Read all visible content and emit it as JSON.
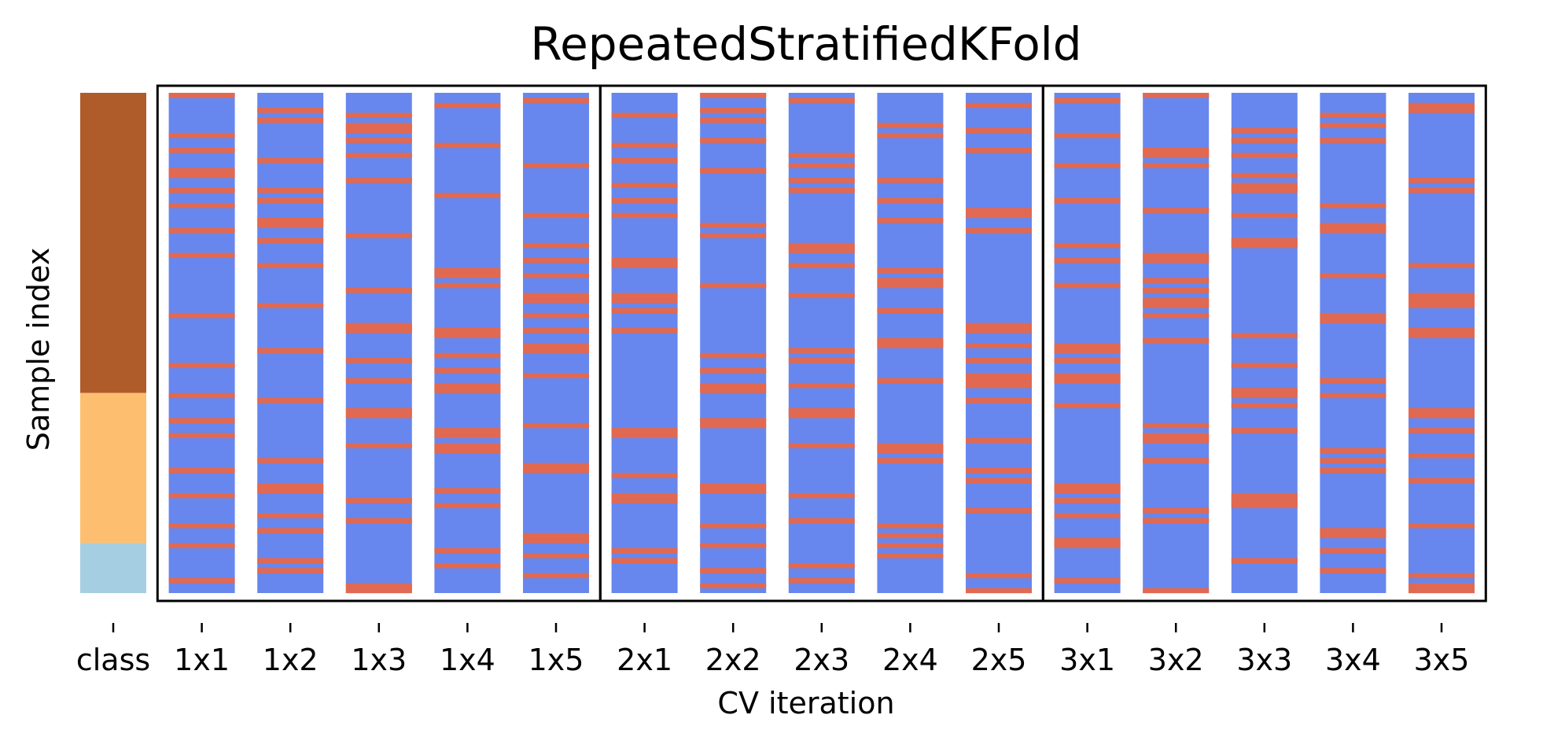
{
  "chart_data": {
    "type": "heatmap",
    "title": "RepeatedStratifiedKFold",
    "xlabel": "CV iteration",
    "ylabel": "Sample index",
    "categories": [
      "class",
      "1x1",
      "1x2",
      "1x3",
      "1x4",
      "1x5",
      "2x1",
      "2x2",
      "2x3",
      "2x4",
      "2x5",
      "3x1",
      "3x2",
      "3x3",
      "3x4",
      "3x5"
    ],
    "n_samples": 100,
    "colors": {
      "train": "#6787ee",
      "test": "#e16951",
      "class_0": "#b05c2a",
      "class_1": "#fdbf6f",
      "class_2": "#a6cee3"
    },
    "classes": [
      {
        "class": 0,
        "start": 0,
        "end": 60
      },
      {
        "class": 1,
        "start": 60,
        "end": 90
      },
      {
        "class": 2,
        "start": 90,
        "end": 100
      }
    ],
    "test_indices": {
      "1x1": [
        0,
        8,
        11,
        15,
        16,
        19,
        22,
        27,
        32,
        44,
        54,
        60,
        65,
        68,
        75,
        80,
        86,
        90,
        97
      ],
      "1x2": [
        3,
        5,
        13,
        19,
        21,
        25,
        26,
        29,
        34,
        42,
        51,
        61,
        73,
        78,
        79,
        84,
        87,
        93,
        95
      ],
      "1x3": [
        4,
        6,
        7,
        9,
        12,
        17,
        28,
        39,
        46,
        47,
        53,
        57,
        63,
        64,
        70,
        81,
        85,
        98,
        99
      ],
      "1x4": [
        2,
        10,
        20,
        35,
        36,
        38,
        47,
        48,
        52,
        55,
        58,
        59,
        67,
        68,
        70,
        71,
        79,
        82,
        91,
        94
      ],
      "1x5": [
        1,
        14,
        24,
        30,
        33,
        36,
        40,
        41,
        44,
        47,
        50,
        51,
        56,
        66,
        74,
        75,
        88,
        89,
        92,
        96
      ],
      "2x1": [
        4,
        10,
        13,
        18,
        21,
        24,
        33,
        34,
        40,
        41,
        43,
        47,
        67,
        68,
        76,
        80,
        81,
        91,
        93
      ],
      "2x2": [
        0,
        3,
        5,
        9,
        15,
        26,
        28,
        38,
        52,
        55,
        58,
        59,
        65,
        66,
        78,
        79,
        86,
        90,
        95,
        98
      ],
      "2x3": [
        1,
        12,
        14,
        17,
        19,
        30,
        31,
        34,
        40,
        51,
        53,
        58,
        63,
        64,
        70,
        80,
        85,
        94,
        97
      ],
      "2x4": [
        6,
        8,
        17,
        21,
        25,
        35,
        37,
        38,
        43,
        49,
        50,
        57,
        70,
        71,
        73,
        86,
        88,
        90,
        92
      ],
      "2x5": [
        2,
        7,
        11,
        23,
        24,
        27,
        46,
        47,
        50,
        53,
        56,
        57,
        58,
        61,
        69,
        75,
        77,
        83,
        96,
        99
      ],
      "3x1": [
        1,
        8,
        14,
        21,
        30,
        33,
        38,
        50,
        51,
        53,
        56,
        57,
        62,
        78,
        79,
        81,
        84,
        89,
        90,
        97
      ],
      "3x2": [
        0,
        11,
        12,
        14,
        23,
        32,
        33,
        37,
        39,
        41,
        42,
        44,
        49,
        66,
        68,
        69,
        73,
        83,
        85,
        99
      ],
      "3x3": [
        7,
        9,
        12,
        16,
        18,
        19,
        24,
        29,
        30,
        48,
        54,
        59,
        60,
        62,
        67,
        80,
        81,
        82,
        93
      ],
      "3x4": [
        4,
        6,
        9,
        22,
        26,
        27,
        36,
        44,
        45,
        57,
        60,
        71,
        73,
        75,
        87,
        88,
        91,
        95
      ],
      "3x5": [
        2,
        3,
        17,
        19,
        34,
        40,
        41,
        42,
        47,
        48,
        63,
        64,
        67,
        72,
        77,
        86,
        96,
        98,
        99
      ]
    },
    "group_boxes": [
      {
        "from": "1x1",
        "to": "1x5"
      },
      {
        "from": "2x1",
        "to": "2x5"
      },
      {
        "from": "3x1",
        "to": "3x5"
      }
    ]
  }
}
